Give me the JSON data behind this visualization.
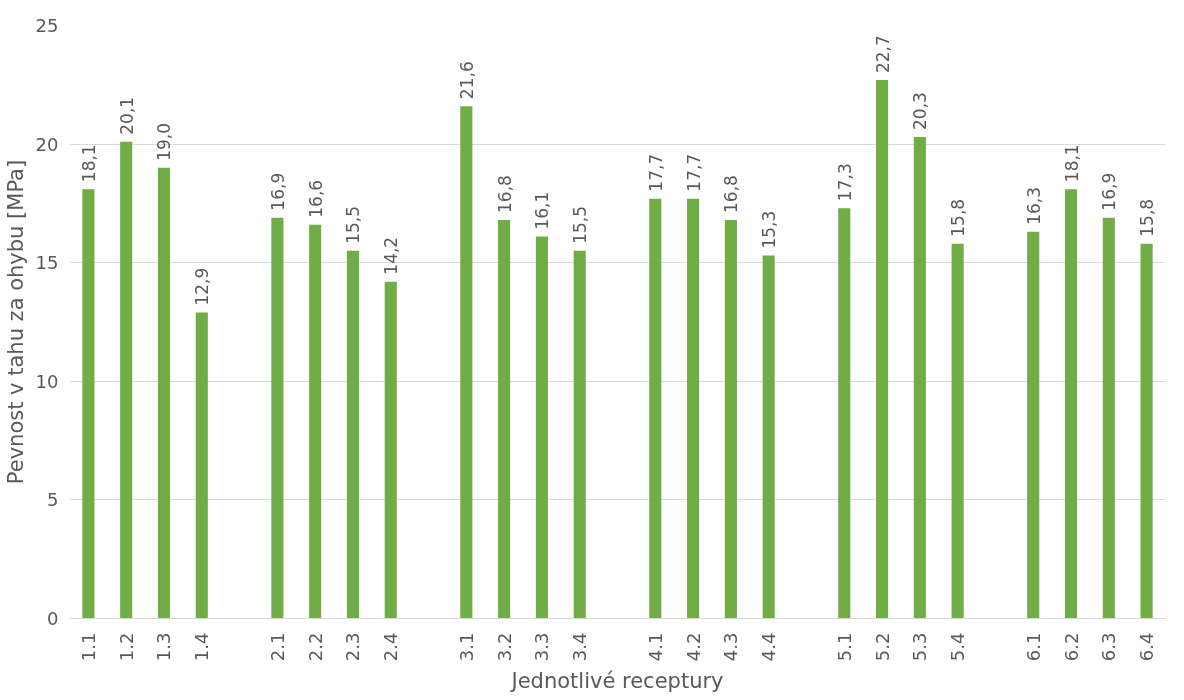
{
  "chart_data": {
    "type": "bar",
    "xlabel": "Jednotlivé receptury",
    "ylabel": "Pevnost v tahu za ohybu [MPa]",
    "categories": [
      "1.1",
      "1.2",
      "1.3",
      "1.4",
      null,
      "2.1",
      "2.2",
      "2.3",
      "2.4",
      null,
      "3.1",
      "3.2",
      "3.3",
      "3.4",
      null,
      "4.1",
      "4.2",
      "4.3",
      "4.4",
      null,
      "5.1",
      "5.2",
      "5.3",
      "5.4",
      null,
      "6.1",
      "6.2",
      "6.3",
      "6.4"
    ],
    "values": [
      18.1,
      20.1,
      19.0,
      12.9,
      null,
      16.9,
      16.6,
      15.5,
      14.2,
      null,
      21.6,
      16.8,
      16.1,
      15.5,
      null,
      17.7,
      17.7,
      16.8,
      15.3,
      null,
      17.3,
      22.7,
      20.3,
      15.8,
      null,
      16.3,
      18.1,
      16.9,
      15.8
    ],
    "value_labels": [
      "18,1",
      "20,1",
      "19,0",
      "12,9",
      null,
      "16,9",
      "16,6",
      "15,5",
      "14,2",
      null,
      "21,6",
      "16,8",
      "16,1",
      "15,5",
      null,
      "17,7",
      "17,7",
      "16,8",
      "15,3",
      null,
      "17,3",
      "22,7",
      "20,3",
      "15,8",
      null,
      "16,3",
      "18,1",
      "16,9",
      "15,8"
    ],
    "color": "#70ad47",
    "ylim": [
      0,
      25
    ],
    "yticks": [
      0,
      5,
      10,
      15,
      20,
      25
    ],
    "grid": "y"
  }
}
